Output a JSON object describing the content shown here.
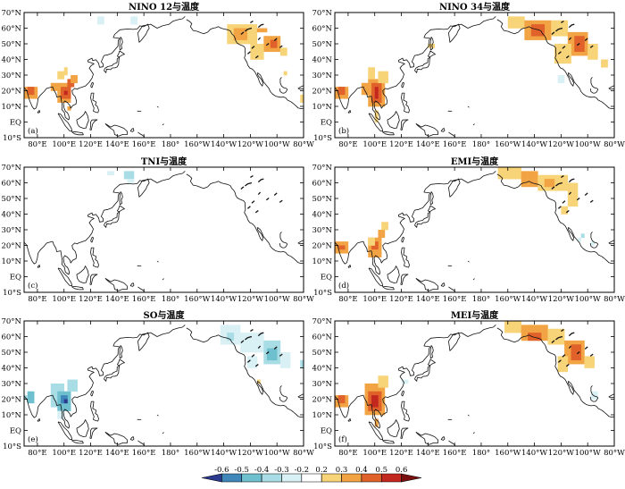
{
  "figure": {
    "panels": [
      {
        "id": "a",
        "title": "NINO 12与温度",
        "label": "(a)"
      },
      {
        "id": "b",
        "title": "NINO 34与温度",
        "label": "(b)"
      },
      {
        "id": "c",
        "title": "TNI与温度",
        "label": "(c)"
      },
      {
        "id": "d",
        "title": "EMI与温度",
        "label": "(d)"
      },
      {
        "id": "e",
        "title": "SO与温度",
        "label": "(e)"
      },
      {
        "id": "f",
        "title": "MEI与温度",
        "label": "(f)"
      }
    ],
    "lat_ticks": [
      "70°N",
      "60°N",
      "50°N",
      "40°N",
      "30°N",
      "20°N",
      "10°N",
      "EQ",
      "10°S"
    ],
    "lon_ticks": [
      "80°E",
      "100°E",
      "120°E",
      "140°E",
      "160°E",
      "180°",
      "160°W",
      "140°W",
      "120°W",
      "100°W",
      "80°W"
    ],
    "colorbar": {
      "levels": [
        "-0.6",
        "-0.5",
        "-0.4",
        "-0.3",
        "-0.2",
        "0.2",
        "0.3",
        "0.4",
        "0.5",
        "0.6"
      ],
      "colors": [
        "#2b3a8f",
        "#3f87b8",
        "#6fc0cf",
        "#a9dde6",
        "#d9f0f5",
        "#ffffff",
        "#f8d479",
        "#f2a444",
        "#e0622a",
        "#c2281e",
        "#7a0f10"
      ]
    }
  }
}
